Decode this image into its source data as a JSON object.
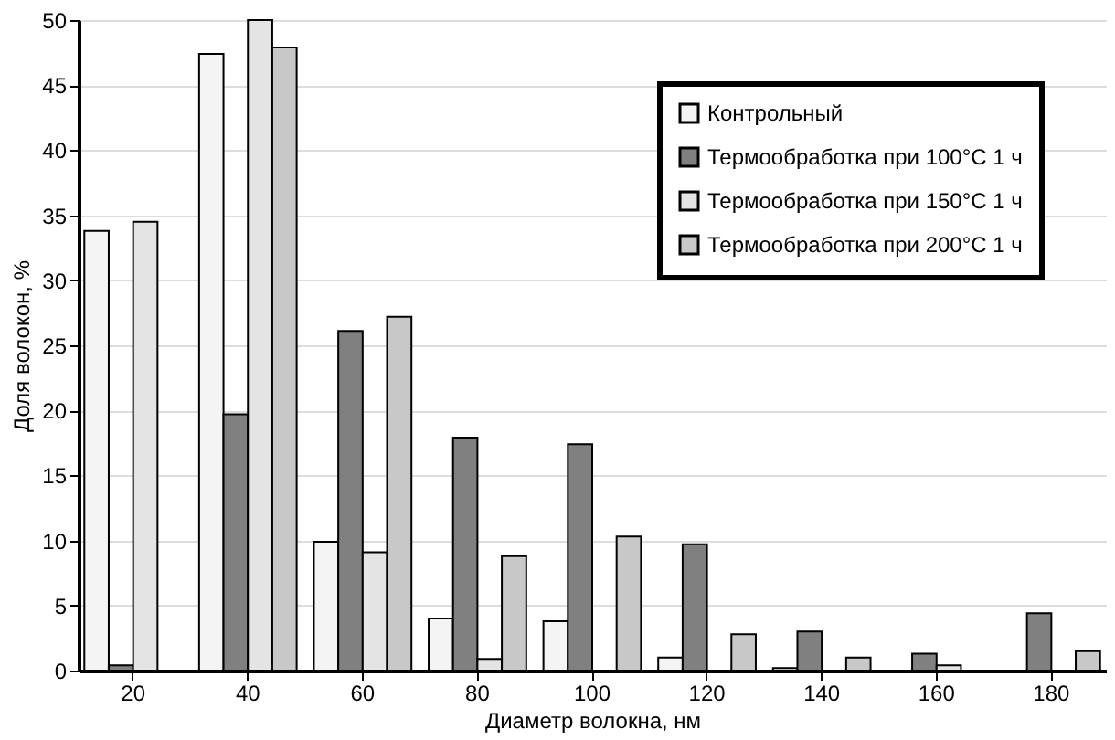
{
  "chart_data": {
    "type": "bar",
    "xlabel": "Диаметр волокна, нм",
    "ylabel": "Доля волокон, %",
    "categories": [
      "20",
      "40",
      "60",
      "80",
      "100",
      "120",
      "140",
      "160",
      "180"
    ],
    "series": [
      {
        "name": "Контрольный",
        "color": "#f4f4f4",
        "values": [
          33.8,
          47.4,
          9.9,
          4.0,
          3.8,
          1.0,
          0.2,
          null,
          null
        ]
      },
      {
        "name": "Термообработка при 100°C 1 ч",
        "color": "#808080",
        "values": [
          0.4,
          19.7,
          26.1,
          17.9,
          17.4,
          9.7,
          3.0,
          1.3,
          4.4
        ]
      },
      {
        "name": "Термообработка при 150°C 1 ч",
        "color": "#e4e4e4",
        "values": [
          34.5,
          50.0,
          9.1,
          0.9,
          null,
          null,
          null,
          0.4,
          null
        ]
      },
      {
        "name": "Термообработка при 200°C 1 ч",
        "color": "#c8c8c8",
        "values": [
          null,
          47.9,
          27.2,
          8.8,
          10.3,
          2.8,
          1.0,
          null,
          1.5
        ]
      }
    ],
    "ylim": [
      0,
      50
    ],
    "yticks": [
      0,
      5,
      10,
      15,
      20,
      25,
      30,
      35,
      40,
      45,
      50
    ],
    "grid": "y",
    "legend": "top right"
  }
}
